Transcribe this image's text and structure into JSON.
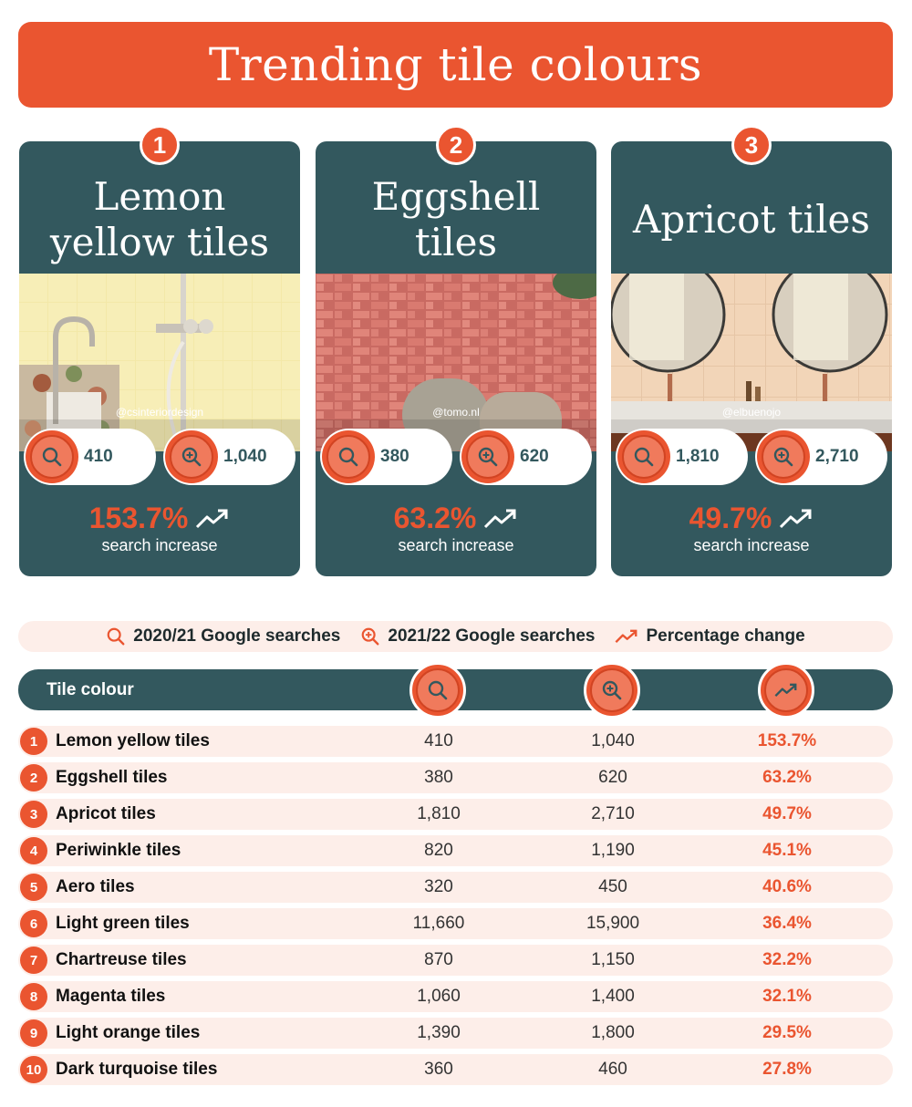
{
  "title": "Trending tile colours",
  "colors": {
    "accent": "#ea5530",
    "dark": "#33585e",
    "row_bg": "#fdeee9"
  },
  "cards": [
    {
      "rank": "1",
      "name": "Lemon yellow tiles",
      "credit": "@csinteriordesign",
      "searches_2021": "410",
      "searches_2122": "1,040",
      "change": "153.7%",
      "change_label": "search increase"
    },
    {
      "rank": "2",
      "name": "Eggshell tiles",
      "credit": "@tomo.nl",
      "searches_2021": "380",
      "searches_2122": "620",
      "change": "63.2%",
      "change_label": "search increase"
    },
    {
      "rank": "3",
      "name": "Apricot tiles",
      "credit": "@elbuenojo",
      "searches_2021": "1,810",
      "searches_2122": "2,710",
      "change": "49.7%",
      "change_label": "search increase"
    }
  ],
  "legend": [
    {
      "icon": "search-icon",
      "label": "2020/21 Google searches"
    },
    {
      "icon": "zoom-in-icon",
      "label": "2021/22 Google searches"
    },
    {
      "icon": "trend-up-icon",
      "label": "Percentage change"
    }
  ],
  "table": {
    "header_label": "Tile colour",
    "rows": [
      {
        "rank": "1",
        "name": "Lemon yellow tiles",
        "s2021": "410",
        "s2122": "1,040",
        "change": "153.7%"
      },
      {
        "rank": "2",
        "name": "Eggshell tiles",
        "s2021": "380",
        "s2122": "620",
        "change": "63.2%"
      },
      {
        "rank": "3",
        "name": "Apricot tiles",
        "s2021": "1,810",
        "s2122": "2,710",
        "change": "49.7%"
      },
      {
        "rank": "4",
        "name": "Periwinkle tiles",
        "s2021": "820",
        "s2122": "1,190",
        "change": "45.1%"
      },
      {
        "rank": "5",
        "name": "Aero tiles",
        "s2021": "320",
        "s2122": "450",
        "change": "40.6%"
      },
      {
        "rank": "6",
        "name": "Light green tiles",
        "s2021": "11,660",
        "s2122": "15,900",
        "change": "36.4%"
      },
      {
        "rank": "7",
        "name": "Chartreuse tiles",
        "s2021": "870",
        "s2122": "1,150",
        "change": "32.2%"
      },
      {
        "rank": "8",
        "name": "Magenta tiles",
        "s2021": "1,060",
        "s2122": "1,400",
        "change": "32.1%"
      },
      {
        "rank": "9",
        "name": "Light orange tiles",
        "s2021": "1,390",
        "s2122": "1,800",
        "change": "29.5%"
      },
      {
        "rank": "10",
        "name": "Dark turquoise tiles",
        "s2021": "360",
        "s2122": "460",
        "change": "27.8%"
      }
    ]
  },
  "chart_data": {
    "type": "table",
    "title": "Trending tile colours",
    "columns": [
      "Tile colour",
      "2020/21 Google searches",
      "2021/22 Google searches",
      "Percentage change"
    ],
    "categories": [
      "Lemon yellow tiles",
      "Eggshell tiles",
      "Apricot tiles",
      "Periwinkle tiles",
      "Aero tiles",
      "Light green tiles",
      "Chartreuse tiles",
      "Magenta tiles",
      "Light orange tiles",
      "Dark turquoise tiles"
    ],
    "series": [
      {
        "name": "2020/21 Google searches",
        "values": [
          410,
          380,
          1810,
          820,
          320,
          11660,
          870,
          1060,
          1390,
          360
        ]
      },
      {
        "name": "2021/22 Google searches",
        "values": [
          1040,
          620,
          2710,
          1190,
          450,
          15900,
          1150,
          1400,
          1800,
          460
        ]
      },
      {
        "name": "Percentage change",
        "values": [
          153.7,
          63.2,
          49.7,
          45.1,
          40.6,
          36.4,
          32.2,
          32.1,
          29.5,
          27.8
        ]
      }
    ]
  }
}
